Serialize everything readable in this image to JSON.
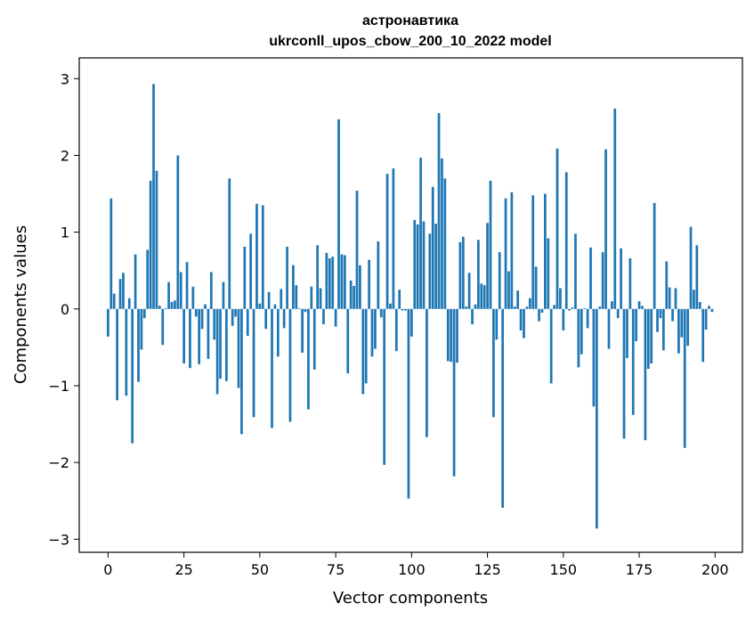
{
  "chart_data": {
    "type": "bar",
    "title": "астронавтика",
    "subtitle": "ukrconll_upos_cbow_200_10_2022 model",
    "xlabel": "Vector components",
    "ylabel": "Components values",
    "xlim": [
      -9.5,
      209
    ],
    "ylim": [
      -3.17,
      3.27
    ],
    "xticks": [
      0,
      25,
      50,
      75,
      100,
      125,
      150,
      175,
      200
    ],
    "yticks": [
      -3,
      -2,
      -1,
      0,
      1,
      2,
      3
    ],
    "ytick_labels": [
      "−3",
      "−2",
      "−1",
      "0",
      "1",
      "2",
      "3"
    ],
    "grid": false,
    "bar_color": "#1f77b4",
    "values": [
      -0.36,
      1.44,
      0.2,
      -1.19,
      0.39,
      0.47,
      -1.13,
      0.14,
      -1.75,
      0.71,
      -0.95,
      -0.53,
      -0.12,
      0.77,
      1.67,
      2.93,
      1.8,
      0.04,
      -0.47,
      0.01,
      0.35,
      0.09,
      0.11,
      2.0,
      0.48,
      -0.71,
      0.61,
      -0.77,
      0.29,
      -0.1,
      -0.72,
      -0.26,
      0.06,
      -0.65,
      0.48,
      -0.4,
      -1.11,
      -0.91,
      0.35,
      -0.94,
      1.7,
      -0.22,
      -0.1,
      -1.03,
      -1.63,
      0.81,
      -0.35,
      0.98,
      -1.41,
      1.37,
      0.07,
      1.35,
      -0.26,
      0.22,
      -1.55,
      0.06,
      -0.62,
      0.26,
      -0.25,
      0.81,
      -1.47,
      0.57,
      0.31,
      0.01,
      -0.57,
      -0.04,
      -1.31,
      0.29,
      -0.79,
      0.83,
      0.27,
      -0.2,
      0.73,
      0.66,
      0.68,
      -0.23,
      2.47,
      0.71,
      0.7,
      -0.84,
      0.37,
      0.3,
      1.54,
      0.57,
      -1.11,
      -0.97,
      0.64,
      -0.62,
      -0.52,
      0.88,
      -0.11,
      -2.03,
      1.76,
      0.07,
      1.83,
      -0.55,
      0.25,
      -0.02,
      -0.02,
      -2.47,
      -0.36,
      1.16,
      1.1,
      1.97,
      1.14,
      -1.67,
      0.98,
      1.59,
      1.11,
      2.55,
      1.96,
      1.7,
      -0.68,
      -0.69,
      -2.18,
      -0.7,
      0.87,
      0.94,
      0.03,
      0.47,
      -0.2,
      0.06,
      0.9,
      0.33,
      0.31,
      1.12,
      1.67,
      -1.41,
      -0.4,
      0.74,
      -2.59,
      1.44,
      0.49,
      1.52,
      0.03,
      0.24,
      -0.28,
      -0.38,
      0.03,
      0.14,
      1.48,
      0.55,
      -0.16,
      -0.05,
      1.5,
      0.92,
      -0.97,
      0.05,
      2.09,
      0.27,
      -0.28,
      1.78,
      -0.02,
      0.02,
      0.98,
      -0.76,
      -0.59,
      0.01,
      -0.25,
      0.8,
      -1.27,
      -2.86,
      0.03,
      0.74,
      2.08,
      -0.52,
      0.1,
      2.61,
      -0.12,
      0.79,
      -1.69,
      -0.64,
      0.66,
      -1.38,
      -0.42,
      0.1,
      0.04,
      -1.71,
      -0.78,
      -0.71,
      1.38,
      -0.3,
      -0.12,
      -0.54,
      0.62,
      0.28,
      -0.16,
      0.27,
      -0.58,
      -0.37,
      -1.81,
      -0.48,
      1.07,
      0.25,
      0.83,
      0.09,
      -0.69,
      -0.27,
      0.04,
      -0.04
    ]
  }
}
